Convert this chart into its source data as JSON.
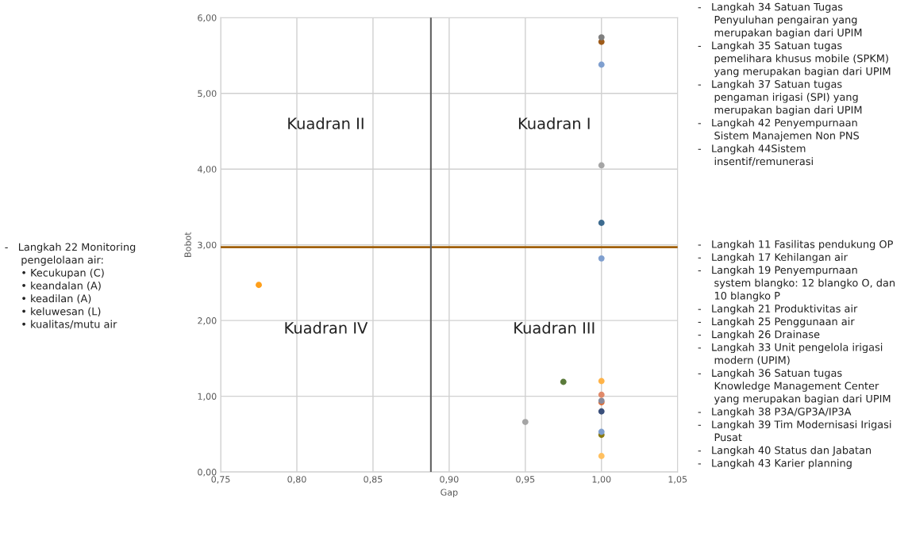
{
  "chart_data": {
    "type": "scatter",
    "xlabel": "Gap",
    "ylabel": "Bobot",
    "x": [
      1.0,
      1.0,
      1.0,
      1.0,
      1.0,
      1.0,
      0.775,
      0.975,
      1.0,
      1.0,
      1.0,
      1.0,
      1.0,
      0.95,
      1.0,
      1.0,
      1.0
    ],
    "values": [
      5.74,
      5.68,
      5.38,
      4.05,
      3.29,
      2.82,
      2.47,
      1.19,
      1.2,
      1.02,
      0.94,
      0.92,
      0.8,
      0.66,
      0.53,
      0.49,
      0.21
    ],
    "colors": [
      "#7f7f7f",
      "#9e5b1a",
      "#7f9fcf",
      "#a5a5a5",
      "#3d6b8f",
      "#7f9fcf",
      "#ff9f1a",
      "#5a7a3a",
      "#ffb347",
      "#e08a6a",
      "#8a8a9a",
      "#e0703a",
      "#3a4f7a",
      "#a5a5a5",
      "#7f9fcf",
      "#8a7a10",
      "#ffc060"
    ],
    "marker": "circle",
    "xlim": [
      0.75,
      1.05
    ],
    "xticks": [
      {
        "value": 0.75,
        "label": "0,75"
      },
      {
        "value": 0.8,
        "label": "0,80"
      },
      {
        "value": 0.85,
        "label": "0,85"
      },
      {
        "value": 0.9,
        "label": "0,90"
      },
      {
        "value": 0.95,
        "label": "0,95"
      },
      {
        "value": 1.0,
        "label": "1,00"
      },
      {
        "value": 1.05,
        "label": "1,05"
      }
    ],
    "ylim": [
      0,
      6
    ],
    "yticks": [
      {
        "value": 0,
        "label": "0,00"
      },
      {
        "value": 1,
        "label": "1,00"
      },
      {
        "value": 2,
        "label": "2,00"
      },
      {
        "value": 3,
        "label": "3,00"
      },
      {
        "value": 4,
        "label": "4,00"
      },
      {
        "value": 5,
        "label": "5,00"
      },
      {
        "value": 6,
        "label": "6,00"
      }
    ],
    "grid": true,
    "ref_lines": [
      {
        "axis": "y",
        "value": 2.97,
        "color": "#a0600a"
      },
      {
        "axis": "x",
        "value": 0.888,
        "color": "#606060"
      }
    ],
    "annotations": [
      "Kuadran II",
      "Kuadran I",
      "Kuadran IV",
      "Kuadran III",
      "-   Langkah 22 Monitoring\n     pengelolaan air:\n     • Kecukupan (C)\n     • keandalan (A)\n     • keadilan (A)\n     • keluwesan (L)\n     • kualitas/mutu air",
      "-   Langkah 34 Satuan Tugas\n     Penyuluhan pengairan yang\n     merupakan bagian dari UPIM\n-   Langkah 35 Satuan tugas\n     pemelihara khusus mobile (SPKM)\n     yang merupakan bagian dari UPIM\n-   Langkah 37 Satuan tugas\n     pengaman irigasi (SPI) yang\n     merupakan bagian dari UPIM\n-   Langkah 42 Penyempurnaan\n     Sistem Manajemen Non PNS\n-   Langkah 44Sistem\n     insentif/remunerasi",
      "-   Langkah 11 Fasilitas pendukung OP\n-   Langkah 17 Kehilangan air\n-   Langkah 19 Penyempurnaan\n     system blangko: 12 blangko O, dan\n     10 blangko P\n-   Langkah 21 Produktivitas air\n-   Langkah 25 Penggunaan air\n-   Langkah 26 Drainase\n-   Langkah 33 Unit pengelola irigasi\n     modern (UPIM)\n-   Langkah 36 Satuan tugas\n     Knowledge Management Center\n     yang merupakan bagian dari UPIM\n-   Langkah 38 P3A/GP3A/IP3A\n-   Langkah 39 Tim Modernisasi Irigasi\n     Pusat\n-   Langkah 40 Status dan Jabatan\n-   Langkah 43 Karier planning"
    ]
  }
}
